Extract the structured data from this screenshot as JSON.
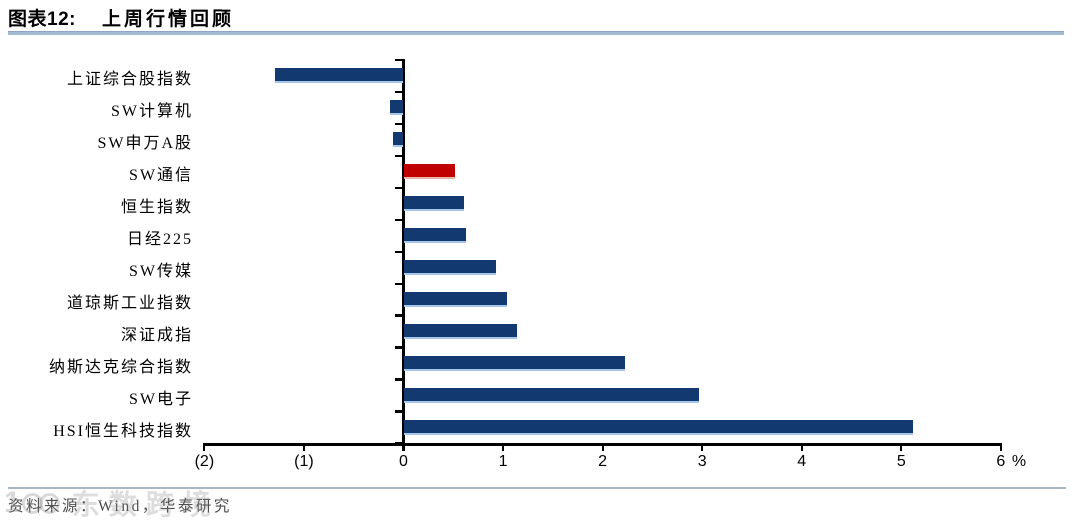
{
  "header": {
    "figure_label": "图表12:",
    "title": "上周行情回顾"
  },
  "chart_data": {
    "type": "bar",
    "orientation": "horizontal",
    "title": "上周行情回顾",
    "grid": false,
    "legend": false,
    "xlim": [
      -2,
      6
    ],
    "unit_suffix": "%",
    "x_ticks": [
      {
        "value": -2,
        "label": "(2)"
      },
      {
        "value": -1,
        "label": "(1)"
      },
      {
        "value": 0,
        "label": "0"
      },
      {
        "value": 1,
        "label": "1"
      },
      {
        "value": 2,
        "label": "2"
      },
      {
        "value": 3,
        "label": "3"
      },
      {
        "value": 4,
        "label": "4"
      },
      {
        "value": 5,
        "label": "5"
      },
      {
        "value": 6,
        "label": "6"
      }
    ],
    "categories": [
      "上证综合股指数",
      "SW计算机",
      "SW申万A股",
      "SW通信",
      "恒生指数",
      "日经225",
      "SW传媒",
      "道琼斯工业指数",
      "深证成指",
      "纳斯达克综合指数",
      "SW电子",
      "HSI恒生科技指数"
    ],
    "values": [
      -1.29,
      -0.14,
      -0.11,
      0.52,
      0.61,
      0.63,
      0.93,
      1.04,
      1.14,
      2.22,
      2.97,
      5.12
    ],
    "bar_color": "#123a70",
    "highlight": {
      "index": 3,
      "color": "#c00000"
    }
  },
  "footer": {
    "source": "资料来源：Wind，华泰研究"
  },
  "watermark": {
    "logo_digit": "1",
    "text": "东数跨境"
  },
  "colors": {
    "bar": "#123a70",
    "bar_highlight": "#c00000",
    "title_rule": "#a4bbd4",
    "footer_rule": "#a8b6c6",
    "axis": "#000000"
  }
}
